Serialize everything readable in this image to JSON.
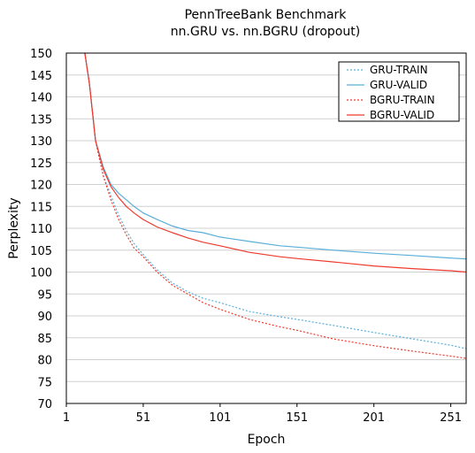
{
  "chart_data": {
    "type": "line",
    "title": "PennTreeBank Benchmark",
    "subtitle": "nn.GRU vs. nn.BGRU (dropout)",
    "xlabel": "Epoch",
    "ylabel": "Perplexity",
    "xlim": [
      1,
      261
    ],
    "ylim": [
      70,
      150
    ],
    "xticks": [
      1,
      51,
      101,
      151,
      201,
      251
    ],
    "yticks": [
      70,
      75,
      80,
      85,
      90,
      95,
      100,
      105,
      110,
      115,
      120,
      125,
      130,
      135,
      140,
      145,
      150
    ],
    "grid": "horizontal",
    "legend_position": "top-right",
    "series": [
      {
        "name": "GRU-TRAIN",
        "color": "#5aafd9",
        "style": "dotted",
        "x": [
          13,
          16,
          20,
          25,
          30,
          35,
          40,
          45,
          51,
          60,
          70,
          80,
          90,
          101,
          120,
          140,
          151,
          175,
          201,
          225,
          251,
          261
        ],
        "y": [
          150,
          143,
          130,
          122,
          117.5,
          113,
          109.5,
          106.5,
          104,
          100.5,
          97.5,
          95.5,
          94,
          93,
          91,
          89.8,
          89.2,
          87.8,
          86.2,
          84.8,
          83.3,
          82.5
        ]
      },
      {
        "name": "GRU-VALID",
        "color": "#5aafd9",
        "style": "solid",
        "x": [
          13,
          16,
          20,
          25,
          30,
          35,
          40,
          45,
          51,
          60,
          70,
          80,
          90,
          101,
          120,
          140,
          151,
          175,
          201,
          225,
          251,
          261
        ],
        "y": [
          150,
          143,
          130,
          124,
          120,
          118,
          116.5,
          115,
          113.5,
          112,
          110.5,
          109.5,
          109,
          108,
          107,
          106,
          105.7,
          105,
          104.3,
          103.8,
          103.2,
          103
        ]
      },
      {
        "name": "BGRU-TRAIN",
        "color": "#ee3b2e",
        "style": "dotted",
        "x": [
          13,
          16,
          20,
          25,
          30,
          35,
          40,
          45,
          51,
          60,
          70,
          80,
          90,
          101,
          120,
          140,
          151,
          175,
          201,
          225,
          251,
          261
        ],
        "y": [
          150,
          143,
          130,
          122,
          116.5,
          112,
          108.5,
          105.5,
          103.5,
          100,
          97,
          95,
          93,
          91.5,
          89.2,
          87.5,
          86.7,
          84.7,
          83.2,
          82,
          80.8,
          80.3
        ]
      },
      {
        "name": "BGRU-VALID",
        "color": "#ee3b2e",
        "style": "solid",
        "x": [
          13,
          16,
          20,
          25,
          30,
          35,
          40,
          45,
          51,
          60,
          70,
          80,
          90,
          101,
          120,
          140,
          151,
          175,
          201,
          225,
          251,
          261
        ],
        "y": [
          150,
          143,
          130,
          123.5,
          119.5,
          117,
          115,
          113.5,
          112,
          110.3,
          109,
          107.8,
          106.8,
          106,
          104.5,
          103.5,
          103.1,
          102.3,
          101.4,
          100.8,
          100.3,
          100
        ]
      }
    ]
  }
}
